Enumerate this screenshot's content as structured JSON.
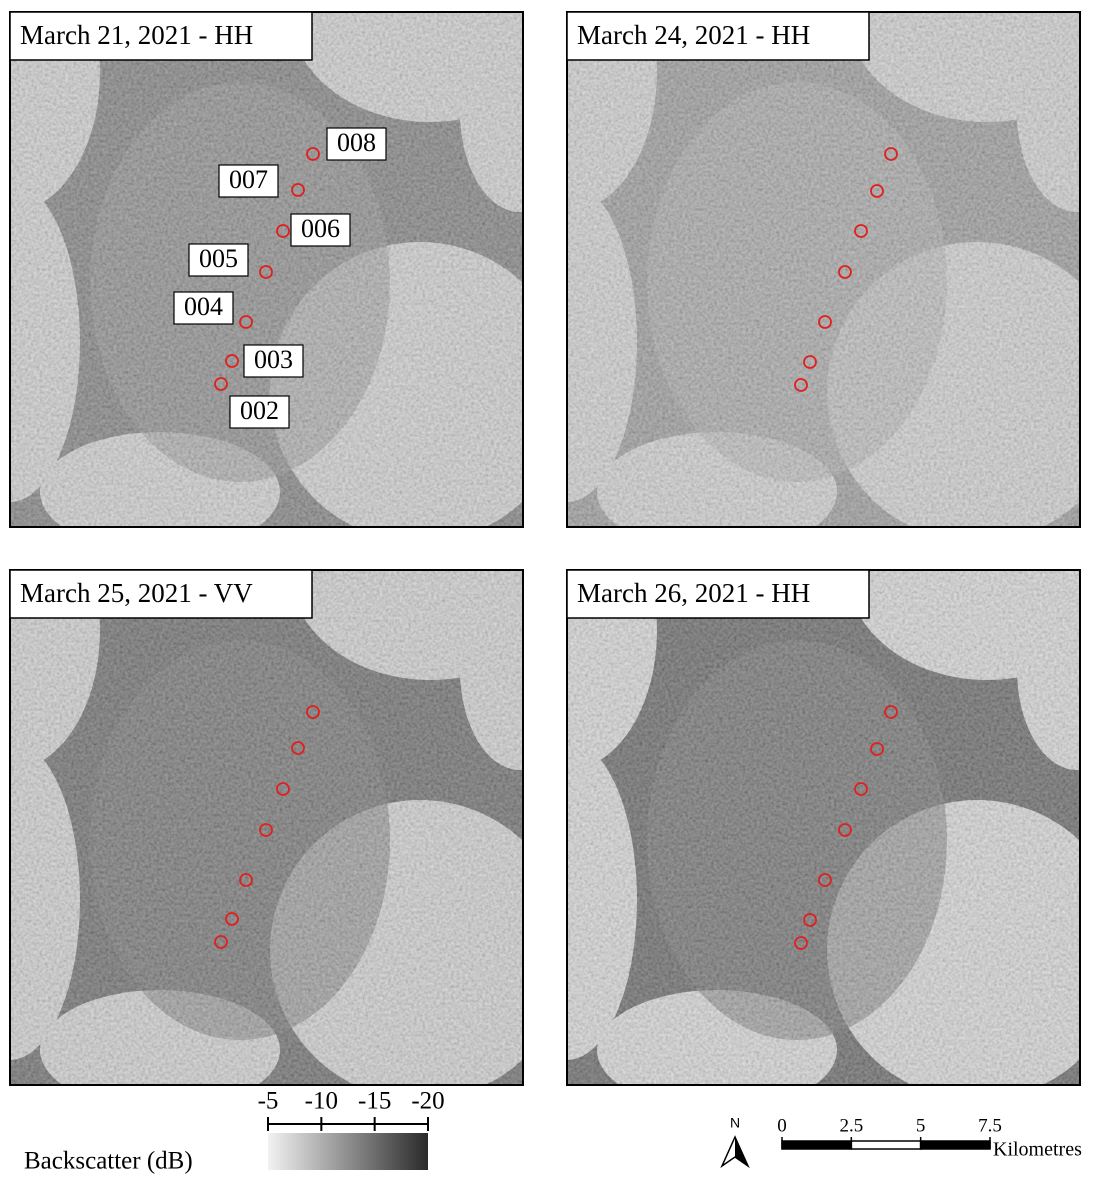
{
  "panels": [
    {
      "title": "March 21, 2021 - HH"
    },
    {
      "title": "March 24, 2021 - HH"
    },
    {
      "title": "March 25, 2021 - VV"
    },
    {
      "title": "March 26, 2021 - HH"
    }
  ],
  "sites": [
    "002",
    "003",
    "004",
    "005",
    "006",
    "007",
    "008"
  ],
  "legend": {
    "label": "Backscatter (dB)",
    "ticks": [
      -5,
      -10,
      -15,
      -20
    ]
  },
  "north": "N",
  "scale_bar": {
    "ticks": [
      0,
      2.5,
      5,
      7.5
    ],
    "unit": "Kilometres"
  }
}
